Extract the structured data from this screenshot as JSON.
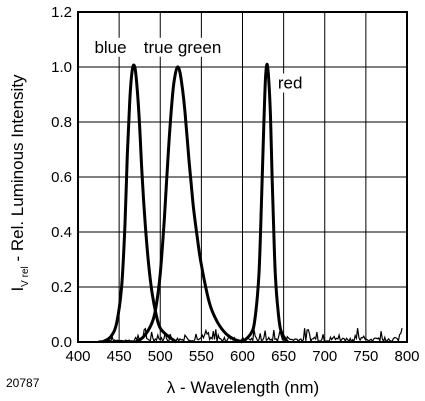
{
  "chart_data": {
    "type": "line",
    "title": "",
    "xlabel": "λ - Wavelength (nm)",
    "ylabel_main": "I",
    "ylabel_sub": "V rel",
    "ylabel_rest": " - Rel. Luminous Intensity",
    "xlim": [
      400,
      800
    ],
    "ylim": [
      0.0,
      1.2
    ],
    "xticks": [
      400,
      450,
      500,
      550,
      600,
      650,
      700,
      750,
      800
    ],
    "yticks": [
      "0.0",
      "0.2",
      "0.4",
      "0.6",
      "0.8",
      "1.0",
      "1.2"
    ],
    "grid": true,
    "figure_id": "20787",
    "series": [
      {
        "name": "blue",
        "x": [
          430,
          440,
          447,
          453,
          457,
          460,
          463,
          466,
          469,
          472,
          475,
          478,
          482,
          486,
          490,
          495,
          500,
          510,
          520
        ],
        "y": [
          0.0,
          0.02,
          0.07,
          0.2,
          0.42,
          0.68,
          0.88,
          0.99,
          1.0,
          0.92,
          0.78,
          0.6,
          0.42,
          0.28,
          0.18,
          0.1,
          0.05,
          0.02,
          0.0
        ]
      },
      {
        "name": "true green",
        "x": [
          470,
          480,
          490,
          495,
          500,
          505,
          510,
          515,
          518,
          521,
          524,
          527,
          530,
          535,
          540,
          545,
          550,
          560,
          570,
          580,
          590,
          600
        ],
        "y": [
          0.0,
          0.02,
          0.07,
          0.13,
          0.25,
          0.45,
          0.7,
          0.9,
          0.97,
          1.0,
          0.98,
          0.92,
          0.84,
          0.66,
          0.5,
          0.38,
          0.28,
          0.14,
          0.07,
          0.03,
          0.01,
          0.0
        ]
      },
      {
        "name": "red",
        "x": [
          600,
          610,
          615,
          620,
          623,
          626,
          628,
          630,
          632,
          634,
          636,
          638,
          640,
          643,
          646,
          650,
          655
        ],
        "y": [
          0.0,
          0.03,
          0.08,
          0.25,
          0.5,
          0.8,
          0.96,
          1.01,
          0.95,
          0.82,
          0.6,
          0.4,
          0.24,
          0.12,
          0.05,
          0.02,
          0.0
        ]
      }
    ],
    "annotations": [
      {
        "text": "blue",
        "x": 420,
        "y": 1.07
      },
      {
        "text": "true green",
        "x": 480,
        "y": 1.07
      },
      {
        "text": "red",
        "x": 643,
        "y": 0.94
      }
    ]
  }
}
